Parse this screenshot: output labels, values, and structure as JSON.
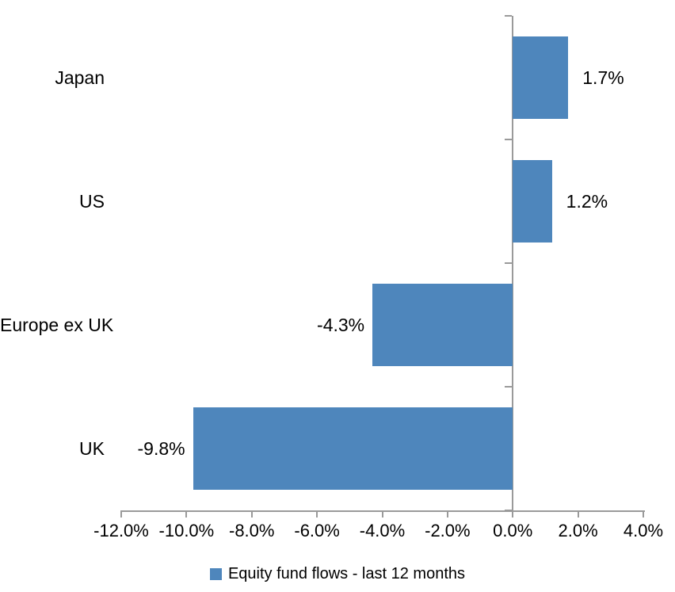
{
  "chart_data": {
    "type": "bar",
    "orientation": "horizontal",
    "title": "",
    "xlabel": "",
    "ylabel": "",
    "categories": [
      "Japan",
      "US",
      "Europe ex UK",
      "UK"
    ],
    "series": [
      {
        "name": "Equity fund flows - last 12 months",
        "values": [
          1.7,
          1.2,
          -4.3,
          -9.8
        ],
        "data_labels": [
          "1.7%",
          "1.2%",
          "-4.3%",
          "-9.8%"
        ]
      }
    ],
    "xlim": [
      -12,
      4
    ],
    "x_tick_values": [
      -12,
      -10,
      -8,
      -6,
      -4,
      -2,
      0,
      2,
      4
    ],
    "x_tick_labels": [
      "-12.0%",
      "-10.0%",
      "-8.0%",
      "-6.0%",
      "-4.0%",
      "-2.0%",
      "0.0%",
      "2.0%",
      "4.0%"
    ],
    "grid": false,
    "legend_position": "bottom",
    "colors": {
      "bar": "#4E86BC",
      "axis": "#9A9A9A",
      "text": "#000000",
      "background": "#FFFFFF"
    }
  },
  "legend": {
    "label": "Equity fund flows - last 12 months"
  }
}
